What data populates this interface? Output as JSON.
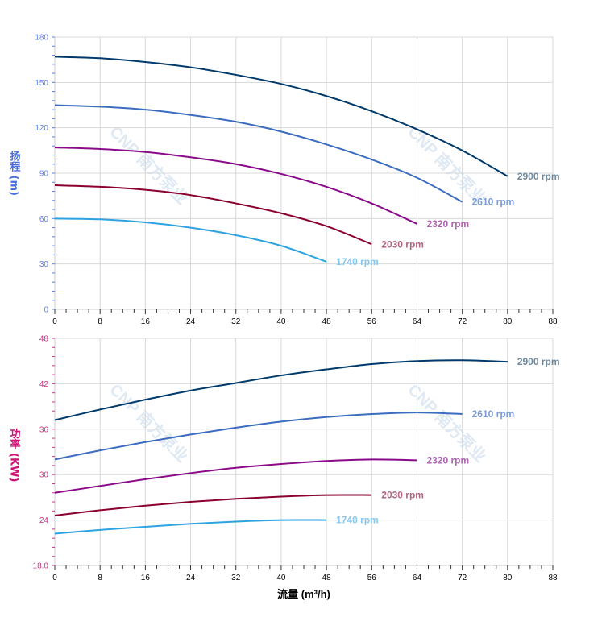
{
  "watermark": "CNP 南方泵业",
  "xlabel": "流量 (m³/h)",
  "chart_data": [
    {
      "type": "line",
      "ylabel": "扬程 (m)",
      "ylabel_color": "#4a6fe0",
      "ytick_color": "#5b7fe8",
      "xlim": [
        0,
        88
      ],
      "ylim": [
        0,
        180
      ],
      "xticks": [
        0,
        8,
        16,
        24,
        32,
        40,
        48,
        56,
        64,
        72,
        80,
        88
      ],
      "yticks": [
        "0",
        "30",
        "60",
        "90",
        "120",
        "150",
        "180"
      ],
      "grid": true,
      "series": [
        {
          "name": "2900 rpm",
          "color": "#003a6b",
          "label_color": "#6f8a9f",
          "x": [
            0,
            8,
            16,
            24,
            32,
            40,
            48,
            56,
            64,
            72,
            80
          ],
          "y": [
            167,
            166,
            163.5,
            160,
            155,
            149,
            141,
            131,
            119,
            105,
            88
          ]
        },
        {
          "name": "2610 rpm",
          "color": "#3b6cc0",
          "label_color": "#7b9cd6",
          "x": [
            0,
            8,
            16,
            24,
            32,
            40,
            48,
            56,
            64,
            72
          ],
          "y": [
            135,
            134,
            132,
            128.5,
            124,
            117.5,
            109,
            99,
            87,
            71
          ]
        },
        {
          "name": "2320 rpm",
          "color": "#8a0a8a",
          "label_color": "#b066b0",
          "x": [
            0,
            8,
            16,
            24,
            32,
            40,
            48,
            56,
            64
          ],
          "y": [
            107,
            106,
            104,
            100.5,
            96,
            89.5,
            81,
            70,
            56.5
          ]
        },
        {
          "name": "2030 rpm",
          "color": "#8a0030",
          "label_color": "#b06680",
          "x": [
            0,
            8,
            16,
            24,
            32,
            40,
            48,
            56
          ],
          "y": [
            82,
            81,
            79,
            75.5,
            70,
            63.5,
            55,
            43
          ]
        },
        {
          "name": "1740 rpm",
          "color": "#2fa3e0",
          "label_color": "#88c8ef",
          "x": [
            0,
            8,
            16,
            24,
            32,
            40,
            48
          ],
          "y": [
            60,
            59.5,
            57.5,
            54,
            49,
            42,
            31.5
          ]
        }
      ]
    },
    {
      "type": "line",
      "ylabel": "功率 (KW)",
      "ylabel_color": "#cc1177",
      "ytick_color": "#cc3388",
      "xlim": [
        0,
        88
      ],
      "ylim": [
        18,
        48
      ],
      "xticks": [
        0,
        8,
        16,
        24,
        32,
        40,
        48,
        56,
        64,
        72,
        80,
        88
      ],
      "yticks": [
        "18.0",
        "24",
        "30",
        "36",
        "42",
        "48"
      ],
      "grid": true,
      "series": [
        {
          "name": "2900 rpm",
          "color": "#003a6b",
          "label_color": "#6f8a9f",
          "x": [
            0,
            8,
            16,
            24,
            32,
            40,
            48,
            56,
            64,
            72,
            80
          ],
          "y": [
            37.2,
            38.6,
            39.9,
            41.1,
            42.1,
            43.1,
            43.9,
            44.6,
            45.0,
            45.1,
            44.9
          ]
        },
        {
          "name": "2610 rpm",
          "color": "#3b6cc0",
          "label_color": "#7b9cd6",
          "x": [
            0,
            8,
            16,
            24,
            32,
            40,
            48,
            56,
            64,
            72
          ],
          "y": [
            32,
            33.2,
            34.3,
            35.3,
            36.2,
            37,
            37.6,
            38,
            38.2,
            38
          ]
        },
        {
          "name": "2320 rpm",
          "color": "#8a0a8a",
          "label_color": "#b066b0",
          "x": [
            0,
            8,
            16,
            24,
            32,
            40,
            48,
            56,
            64
          ],
          "y": [
            27.6,
            28.5,
            29.4,
            30.2,
            30.9,
            31.4,
            31.8,
            32,
            31.9
          ]
        },
        {
          "name": "2030 rpm",
          "color": "#8a0030",
          "label_color": "#b06680",
          "x": [
            0,
            8,
            16,
            24,
            32,
            40,
            48,
            56
          ],
          "y": [
            24.6,
            25.3,
            25.9,
            26.4,
            26.8,
            27.1,
            27.3,
            27.3
          ]
        },
        {
          "name": "1740 rpm",
          "color": "#2fa3e0",
          "label_color": "#88c8ef",
          "x": [
            0,
            8,
            16,
            24,
            32,
            40,
            48
          ],
          "y": [
            22.2,
            22.7,
            23.1,
            23.5,
            23.8,
            24,
            24
          ]
        }
      ]
    }
  ]
}
